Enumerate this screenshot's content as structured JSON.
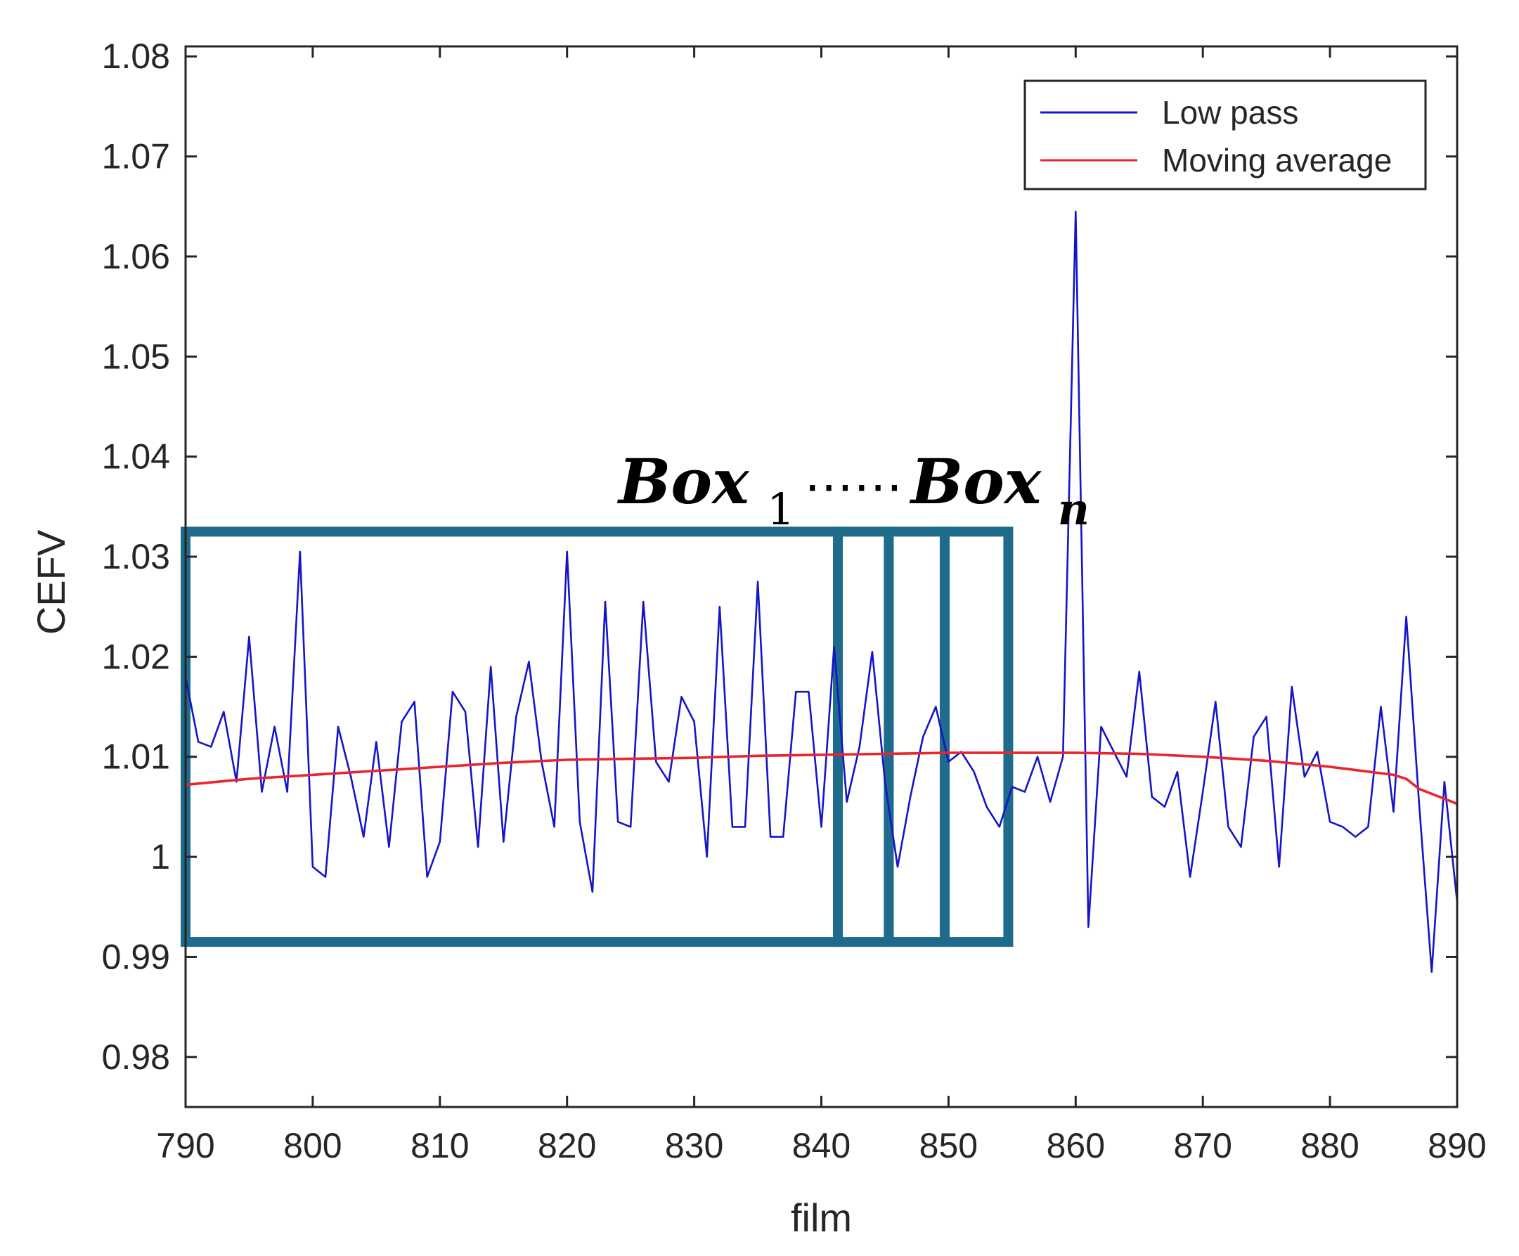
{
  "chart_data": {
    "type": "line",
    "xlabel": "film",
    "ylabel": "CEFV",
    "xlim": [
      790,
      890
    ],
    "ylim": [
      0.975,
      1.081
    ],
    "xticks": [
      "790",
      "800",
      "810",
      "820",
      "830",
      "840",
      "850",
      "860",
      "870",
      "880",
      "890"
    ],
    "yticks": [
      "0.98",
      "0.99",
      "1",
      "1.01",
      "1.02",
      "1.03",
      "1.04",
      "1.05",
      "1.06",
      "1.07",
      "1.08"
    ],
    "grid": false,
    "legend_position": "top-right",
    "series": [
      {
        "name": "Low pass",
        "color": "#1414c8",
        "x": [
          790,
          791,
          792,
          793,
          794,
          795,
          796,
          797,
          798,
          799,
          800,
          801,
          802,
          803,
          804,
          805,
          806,
          807,
          808,
          809,
          810,
          811,
          812,
          813,
          814,
          815,
          816,
          817,
          818,
          819,
          820,
          821,
          822,
          823,
          824,
          825,
          826,
          827,
          828,
          829,
          830,
          831,
          832,
          833,
          834,
          835,
          836,
          837,
          838,
          839,
          840,
          841,
          842,
          843,
          844,
          845,
          846,
          847,
          848,
          849,
          850,
          851,
          852,
          853,
          854,
          855,
          856,
          857,
          858,
          859,
          860,
          861,
          862,
          863,
          864,
          865,
          866,
          867,
          868,
          869,
          870,
          871,
          872,
          873,
          874,
          875,
          876,
          877,
          878,
          879,
          880,
          881,
          882,
          883,
          884,
          885,
          886,
          887,
          888,
          889,
          890
        ],
        "y": [
          1.018,
          1.0115,
          1.011,
          1.0145,
          1.0075,
          1.022,
          1.0065,
          1.013,
          1.0065,
          1.0305,
          0.999,
          0.998,
          1.013,
          1.008,
          1.002,
          1.0115,
          1.001,
          1.0135,
          1.0155,
          0.998,
          1.0015,
          1.0165,
          1.0145,
          1.001,
          1.019,
          1.0015,
          1.014,
          1.0195,
          1.0095,
          1.003,
          1.0305,
          1.0035,
          0.9965,
          1.0255,
          1.0035,
          1.003,
          1.0255,
          1.0095,
          1.0075,
          1.016,
          1.0135,
          1.0,
          1.025,
          1.003,
          1.003,
          1.0275,
          1.002,
          1.002,
          1.0165,
          1.0165,
          1.003,
          1.021,
          1.0055,
          1.011,
          1.0205,
          1.0075,
          0.999,
          1.006,
          1.012,
          1.015,
          1.0095,
          1.0105,
          1.0085,
          1.005,
          1.003,
          1.007,
          1.0065,
          1.01,
          1.0055,
          1.01,
          1.0645,
          0.993,
          1.013,
          1.0105,
          1.008,
          1.0185,
          1.006,
          1.005,
          1.0085,
          0.998,
          1.0065,
          1.0155,
          1.003,
          1.001,
          1.012,
          1.014,
          0.999,
          1.017,
          1.008,
          1.0105,
          1.0035,
          1.003,
          1.002,
          1.003,
          1.015,
          1.0045,
          1.024,
          1.0055,
          0.9885,
          1.0075,
          0.9955
        ]
      },
      {
        "name": "Moving average",
        "color": "#e8262e",
        "x": [
          790,
          795,
          800,
          805,
          810,
          815,
          820,
          825,
          830,
          835,
          840,
          845,
          850,
          855,
          860,
          865,
          870,
          875,
          880,
          885,
          886,
          887,
          888,
          889,
          890
        ],
        "y": [
          1.0072,
          1.0078,
          1.0082,
          1.0086,
          1.009,
          1.0094,
          1.0097,
          1.0098,
          1.0099,
          1.0101,
          1.0102,
          1.0103,
          1.0104,
          1.0104,
          1.0104,
          1.0103,
          1.01,
          1.0096,
          1.009,
          1.0082,
          1.0078,
          1.0068,
          1.0063,
          1.0058,
          1.0053
        ]
      }
    ],
    "annotation": {
      "box_label": "Box",
      "sub_first": "1",
      "ellipsis": "⋯⋯",
      "sub_last": "n",
      "box_color": "#1e6b8c",
      "boxes": [
        {
          "x0": 790,
          "x1": 841.3,
          "y0": 0.9915,
          "y1": 1.0325
        },
        {
          "x0": 841.3,
          "x1": 845.3,
          "y0": 0.9915,
          "y1": 1.0325
        },
        {
          "x0": 845.3,
          "x1": 849.7,
          "y0": 0.9915,
          "y1": 1.0325
        },
        {
          "x0": 849.7,
          "x1": 854.7,
          "y0": 0.9915,
          "y1": 1.0325
        }
      ]
    }
  }
}
